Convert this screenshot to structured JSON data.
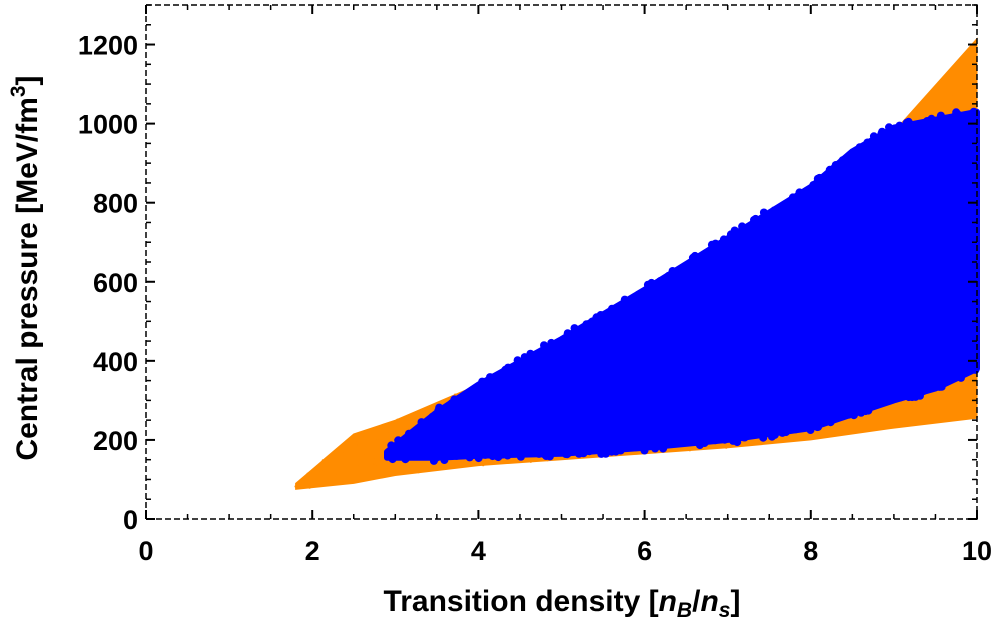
{
  "chart_data": {
    "type": "scatter",
    "xlabel": "Transition density [n_B/n_s]",
    "ylabel": "Central pressure [MeV/fm^3]",
    "xlim": [
      0,
      10
    ],
    "ylim": [
      0,
      1300
    ],
    "x_ticks": [
      0,
      2,
      4,
      6,
      8,
      10
    ],
    "y_ticks": [
      0,
      200,
      400,
      600,
      800,
      1000,
      1200
    ],
    "x_tick_labels": [
      "0",
      "2",
      "4",
      "6",
      "8",
      "10"
    ],
    "y_tick_labels": [
      "0",
      "200",
      "400",
      "600",
      "800",
      "1000",
      "1200"
    ],
    "grid": false,
    "frame": true,
    "series": [
      {
        "color": "#FF8C00",
        "marker": "small-dot",
        "region": {
          "x_min": 1.8,
          "x_max": 10,
          "upper_envelope": [
            [
              1.8,
              90
            ],
            [
              2.5,
              215
            ],
            [
              3.0,
              250
            ],
            [
              4.0,
              340
            ],
            [
              5.0,
              455
            ],
            [
              6.0,
              580
            ],
            [
              7.0,
              710
            ],
            [
              8.0,
              840
            ],
            [
              9.0,
              980
            ],
            [
              10.0,
              1215
            ]
          ],
          "lower_envelope": [
            [
              1.8,
              75
            ],
            [
              2.5,
              90
            ],
            [
              3.0,
              110
            ],
            [
              4.0,
              135
            ],
            [
              5.0,
              150
            ],
            [
              6.0,
              165
            ],
            [
              7.0,
              180
            ],
            [
              8.0,
              200
            ],
            [
              9.0,
              230
            ],
            [
              10.0,
              255
            ]
          ]
        }
      },
      {
        "color": "#0000FF",
        "marker": "filled-circle",
        "region": {
          "x_min": 2.9,
          "x_max": 10,
          "upper_envelope": [
            [
              2.9,
              170
            ],
            [
              3.5,
              270
            ],
            [
              4.0,
              340
            ],
            [
              5.0,
              455
            ],
            [
              6.0,
              580
            ],
            [
              7.0,
              710
            ],
            [
              8.0,
              840
            ],
            [
              8.5,
              930
            ],
            [
              9.0,
              990
            ],
            [
              10.0,
              1030
            ]
          ],
          "lower_envelope": [
            [
              2.9,
              155
            ],
            [
              3.5,
              155
            ],
            [
              4.0,
              160
            ],
            [
              5.0,
              165
            ],
            [
              6.0,
              180
            ],
            [
              7.0,
              200
            ],
            [
              8.0,
              230
            ],
            [
              9.0,
              300
            ],
            [
              9.5,
              330
            ],
            [
              10.0,
              380
            ]
          ]
        }
      }
    ]
  }
}
